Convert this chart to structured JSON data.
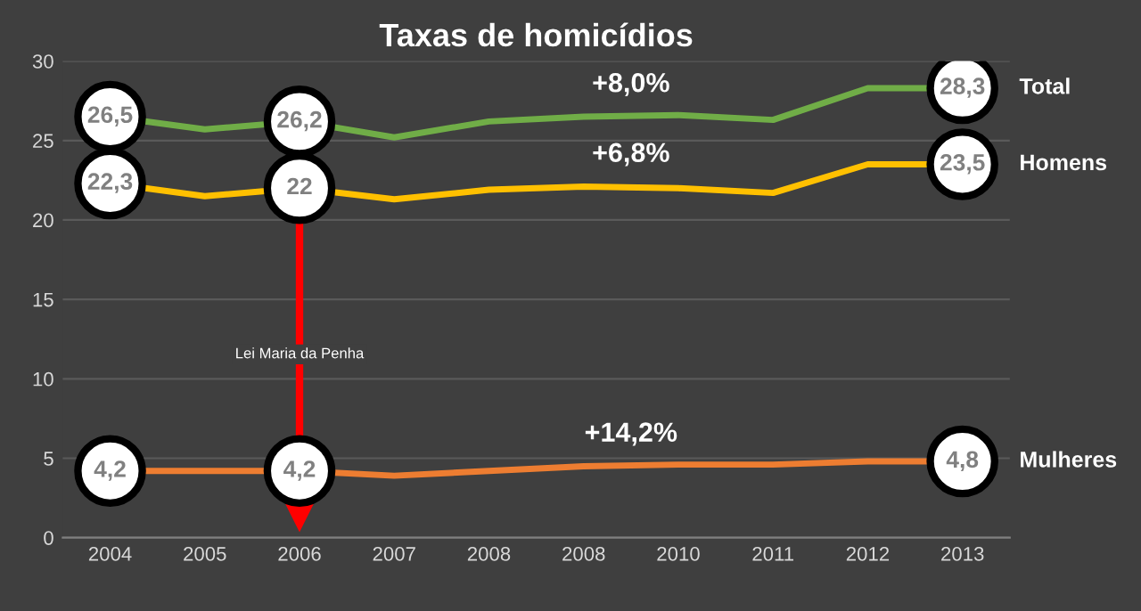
{
  "chart_data": {
    "type": "line",
    "title": "Taxas de homicídios",
    "categories": [
      "2004",
      "2005",
      "2006",
      "2007",
      "2008",
      "2008",
      "2010",
      "2011",
      "2012",
      "2013"
    ],
    "series": [
      {
        "name": "Total",
        "color": "#70ad47",
        "values": [
          26.5,
          25.7,
          26.2,
          25.2,
          26.2,
          26.5,
          26.6,
          26.3,
          28.3,
          28.3
        ],
        "value_labels": [
          "26,5",
          null,
          "26,2",
          null,
          null,
          null,
          null,
          null,
          null,
          "28,3"
        ]
      },
      {
        "name": "Homens",
        "color": "#ffc000",
        "values": [
          22.3,
          21.5,
          22,
          21.3,
          21.9,
          22.1,
          22.0,
          21.7,
          23.5,
          23.5
        ],
        "value_labels": [
          "22,3",
          null,
          "22",
          null,
          null,
          null,
          null,
          null,
          null,
          "23,5"
        ]
      },
      {
        "name": "Mulheres",
        "color": "#ed7d31",
        "values": [
          4.2,
          4.2,
          4.2,
          3.9,
          4.2,
          4.5,
          4.6,
          4.6,
          4.8,
          4.8
        ],
        "value_labels": [
          "4,2",
          null,
          "4,2",
          null,
          null,
          null,
          null,
          null,
          null,
          "4,8"
        ]
      }
    ],
    "annotations": [
      "+8,0%",
      "+6,8%",
      "+14,2%"
    ],
    "ref_lines": [
      {
        "axis": "x",
        "value": "2006",
        "label": "Lei Maria da Penha",
        "color": "#ff0000"
      }
    ],
    "ylim": [
      0,
      30
    ],
    "yticks": [
      0,
      5,
      10,
      15,
      20,
      25,
      30
    ],
    "grid": "y",
    "legend": false,
    "marker": "none",
    "line_style": "solid"
  }
}
